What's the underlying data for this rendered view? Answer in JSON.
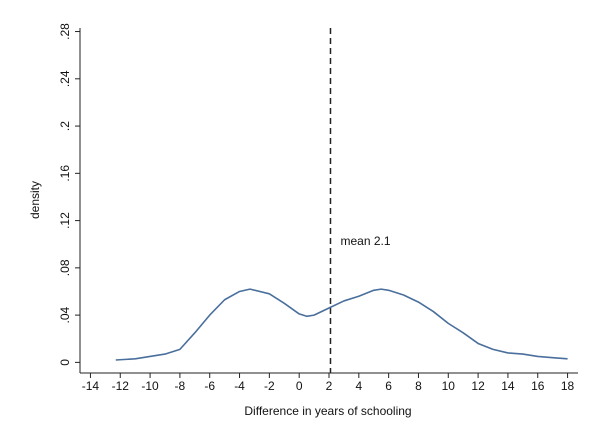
{
  "chart_data": {
    "type": "line",
    "x_label": "Difference in years of schooling",
    "y_label": "density",
    "x": [
      -12.3,
      -11,
      -10,
      -9,
      -8,
      -7,
      -6,
      -5,
      -4,
      -3.3,
      -2,
      -1,
      0,
      0.5,
      1,
      2,
      3,
      4,
      5,
      5.5,
      6,
      7,
      8,
      9,
      10,
      11,
      12,
      13,
      14,
      15,
      16,
      17,
      18
    ],
    "series": [
      {
        "color": "#4a6f9c",
        "values": [
          0.002,
          0.003,
          0.005,
          0.007,
          0.011,
          0.025,
          0.04,
          0.053,
          0.06,
          0.062,
          0.058,
          0.05,
          0.041,
          0.039,
          0.04,
          0.046,
          0.052,
          0.056,
          0.061,
          0.062,
          0.061,
          0.057,
          0.051,
          0.043,
          0.033,
          0.025,
          0.016,
          0.011,
          0.008,
          0.007,
          0.005,
          0.004,
          0.003
        ]
      }
    ],
    "mean_line": 2.1,
    "annotation": "mean 2.1",
    "xlim": [
      -14.7,
      18.7
    ],
    "ylim": [
      -0.009,
      0.283
    ],
    "xticks": [
      -14,
      -12,
      -10,
      -8,
      -6,
      -4,
      -2,
      0,
      2,
      4,
      6,
      8,
      10,
      12,
      14,
      16,
      18
    ],
    "yticks": [
      0,
      {
        "value": 0.04,
        "label": ".04"
      },
      {
        "value": 0.08,
        "label": ".08"
      },
      {
        "value": 0.12,
        "label": ".12"
      },
      {
        "value": 0.16,
        "label": ".16"
      },
      {
        "value": 0.2,
        "label": ".2"
      },
      {
        "value": 0.24,
        "label": ".24"
      },
      {
        "value": 0.28,
        "label": ".28"
      }
    ]
  }
}
